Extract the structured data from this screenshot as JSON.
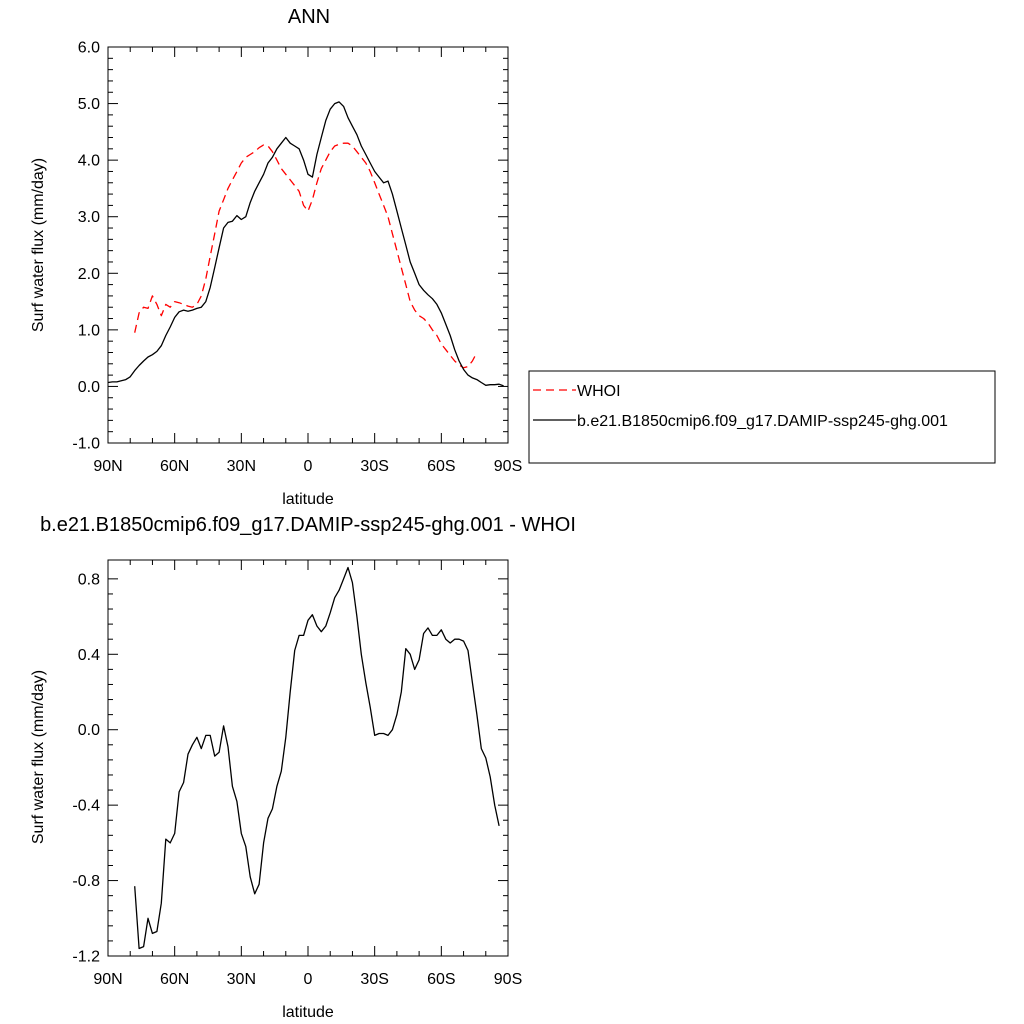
{
  "chart_data": [
    {
      "type": "line",
      "title": "ANN",
      "xlabel": "latitude",
      "ylabel": "Surf water flux (mm/day)",
      "xlim": [
        90,
        -90
      ],
      "ylim": [
        -1.0,
        6.0
      ],
      "x_ticks": [
        90,
        60,
        30,
        0,
        -30,
        -60,
        -90
      ],
      "x_tick_labels": [
        "90N",
        "60N",
        "30N",
        "0",
        "30S",
        "60S",
        "90S"
      ],
      "y_ticks": [
        -1.0,
        0.0,
        1.0,
        2.0,
        3.0,
        4.0,
        5.0,
        6.0
      ],
      "y_tick_labels": [
        "-1.0",
        "0.0",
        "1.0",
        "2.0",
        "3.0",
        "4.0",
        "5.0",
        "6.0"
      ],
      "grid": false,
      "legend": "outside-right",
      "series": [
        {
          "name": "WHOI",
          "color": "#ff0000",
          "dash": "dashed",
          "points": [
            [
              78,
              0.95
            ],
            [
              76,
              1.3
            ],
            [
              74,
              1.4
            ],
            [
              72,
              1.38
            ],
            [
              70,
              1.6
            ],
            [
              68,
              1.45
            ],
            [
              66,
              1.25
            ],
            [
              64,
              1.45
            ],
            [
              62,
              1.4
            ],
            [
              60,
              1.5
            ],
            [
              58,
              1.48
            ],
            [
              56,
              1.45
            ],
            [
              54,
              1.42
            ],
            [
              52,
              1.4
            ],
            [
              50,
              1.45
            ],
            [
              48,
              1.6
            ],
            [
              46,
              1.9
            ],
            [
              44,
              2.3
            ],
            [
              42,
              2.7
            ],
            [
              40,
              3.1
            ],
            [
              38,
              3.3
            ],
            [
              36,
              3.5
            ],
            [
              34,
              3.65
            ],
            [
              32,
              3.8
            ],
            [
              30,
              3.95
            ],
            [
              28,
              4.05
            ],
            [
              26,
              4.1
            ],
            [
              24,
              4.15
            ],
            [
              22,
              4.22
            ],
            [
              20,
              4.27
            ],
            [
              18,
              4.25
            ],
            [
              16,
              4.15
            ],
            [
              14,
              4.0
            ],
            [
              12,
              3.85
            ],
            [
              10,
              3.75
            ],
            [
              8,
              3.65
            ],
            [
              6,
              3.55
            ],
            [
              4,
              3.45
            ],
            [
              2,
              3.2
            ],
            [
              0,
              3.1
            ],
            [
              -2,
              3.3
            ],
            [
              -4,
              3.6
            ],
            [
              -6,
              3.85
            ],
            [
              -8,
              4.0
            ],
            [
              -10,
              4.15
            ],
            [
              -12,
              4.25
            ],
            [
              -14,
              4.28
            ],
            [
              -16,
              4.3
            ],
            [
              -18,
              4.3
            ],
            [
              -20,
              4.25
            ],
            [
              -22,
              4.15
            ],
            [
              -24,
              4.05
            ],
            [
              -26,
              3.95
            ],
            [
              -28,
              3.8
            ],
            [
              -30,
              3.6
            ],
            [
              -32,
              3.4
            ],
            [
              -34,
              3.2
            ],
            [
              -36,
              3.0
            ],
            [
              -38,
              2.7
            ],
            [
              -40,
              2.4
            ],
            [
              -42,
              2.1
            ],
            [
              -44,
              1.8
            ],
            [
              -46,
              1.5
            ],
            [
              -48,
              1.35
            ],
            [
              -50,
              1.25
            ],
            [
              -52,
              1.2
            ],
            [
              -54,
              1.12
            ],
            [
              -56,
              1.0
            ],
            [
              -58,
              0.9
            ],
            [
              -60,
              0.75
            ],
            [
              -62,
              0.65
            ],
            [
              -64,
              0.55
            ],
            [
              -66,
              0.45
            ],
            [
              -68,
              0.38
            ],
            [
              -70,
              0.33
            ],
            [
              -72,
              0.35
            ],
            [
              -74,
              0.45
            ],
            [
              -76,
              0.6
            ]
          ]
        },
        {
          "name": "b.e21.B1850cmip6.f09_g17.DAMIP-ssp245-ghg.001",
          "color": "#000000",
          "dash": "solid",
          "points": [
            [
              90,
              0.07
            ],
            [
              88,
              0.08
            ],
            [
              86,
              0.08
            ],
            [
              84,
              0.1
            ],
            [
              82,
              0.12
            ],
            [
              80,
              0.17
            ],
            [
              78,
              0.28
            ],
            [
              76,
              0.37
            ],
            [
              74,
              0.45
            ],
            [
              72,
              0.52
            ],
            [
              70,
              0.56
            ],
            [
              68,
              0.62
            ],
            [
              66,
              0.72
            ],
            [
              64,
              0.9
            ],
            [
              62,
              1.05
            ],
            [
              60,
              1.22
            ],
            [
              58,
              1.32
            ],
            [
              56,
              1.35
            ],
            [
              54,
              1.33
            ],
            [
              52,
              1.35
            ],
            [
              50,
              1.38
            ],
            [
              48,
              1.4
            ],
            [
              46,
              1.5
            ],
            [
              44,
              1.75
            ],
            [
              42,
              2.1
            ],
            [
              40,
              2.45
            ],
            [
              38,
              2.8
            ],
            [
              36,
              2.9
            ],
            [
              34,
              2.92
            ],
            [
              32,
              3.02
            ],
            [
              30,
              2.95
            ],
            [
              28,
              3.0
            ],
            [
              26,
              3.25
            ],
            [
              24,
              3.45
            ],
            [
              22,
              3.6
            ],
            [
              20,
              3.75
            ],
            [
              18,
              3.95
            ],
            [
              16,
              4.05
            ],
            [
              14,
              4.2
            ],
            [
              12,
              4.3
            ],
            [
              10,
              4.4
            ],
            [
              8,
              4.3
            ],
            [
              6,
              4.25
            ],
            [
              4,
              4.2
            ],
            [
              2,
              4.0
            ],
            [
              0,
              3.75
            ],
            [
              -2,
              3.7
            ],
            [
              -4,
              4.1
            ],
            [
              -6,
              4.4
            ],
            [
              -8,
              4.7
            ],
            [
              -10,
              4.9
            ],
            [
              -12,
              5.0
            ],
            [
              -14,
              5.03
            ],
            [
              -16,
              4.95
            ],
            [
              -18,
              4.75
            ],
            [
              -20,
              4.6
            ],
            [
              -22,
              4.45
            ],
            [
              -24,
              4.25
            ],
            [
              -26,
              4.1
            ],
            [
              -28,
              3.95
            ],
            [
              -30,
              3.8
            ],
            [
              -32,
              3.7
            ],
            [
              -34,
              3.6
            ],
            [
              -36,
              3.63
            ],
            [
              -38,
              3.4
            ],
            [
              -40,
              3.1
            ],
            [
              -42,
              2.8
            ],
            [
              -44,
              2.5
            ],
            [
              -46,
              2.2
            ],
            [
              -48,
              2.0
            ],
            [
              -50,
              1.8
            ],
            [
              -52,
              1.7
            ],
            [
              -54,
              1.62
            ],
            [
              -56,
              1.55
            ],
            [
              -58,
              1.45
            ],
            [
              -60,
              1.3
            ],
            [
              -62,
              1.1
            ],
            [
              -64,
              0.9
            ],
            [
              -66,
              0.65
            ],
            [
              -68,
              0.45
            ],
            [
              -70,
              0.3
            ],
            [
              -72,
              0.2
            ],
            [
              -74,
              0.15
            ],
            [
              -76,
              0.12
            ],
            [
              -78,
              0.07
            ],
            [
              -80,
              0.02
            ],
            [
              -82,
              0.03
            ],
            [
              -84,
              0.03
            ],
            [
              -86,
              0.04
            ],
            [
              -88,
              0.01
            ]
          ]
        }
      ]
    },
    {
      "type": "line",
      "title": "b.e21.B1850cmip6.f09_g17.DAMIP-ssp245-ghg.001 - WHOI",
      "xlabel": "latitude",
      "ylabel": "Surf water flux (mm/day)",
      "xlim": [
        90,
        -90
      ],
      "ylim": [
        -1.2,
        0.9
      ],
      "x_ticks": [
        90,
        60,
        30,
        0,
        -30,
        -60,
        -90
      ],
      "x_tick_labels": [
        "90N",
        "60N",
        "30N",
        "0",
        "30S",
        "60S",
        "90S"
      ],
      "y_ticks": [
        -1.2,
        -0.8,
        -0.4,
        0.0,
        0.4,
        0.8
      ],
      "y_tick_labels": [
        "-1.2",
        "-0.8",
        "-0.4",
        "0.0",
        "0.4",
        "0.8"
      ],
      "grid": false,
      "series": [
        {
          "color": "#000000",
          "dash": "solid",
          "points": [
            [
              78,
              -0.83
            ],
            [
              76,
              -1.16
            ],
            [
              74,
              -1.15
            ],
            [
              72,
              -1.0
            ],
            [
              70,
              -1.08
            ],
            [
              68,
              -1.07
            ],
            [
              66,
              -0.92
            ],
            [
              64,
              -0.58
            ],
            [
              62,
              -0.6
            ],
            [
              60,
              -0.55
            ],
            [
              58,
              -0.33
            ],
            [
              56,
              -0.28
            ],
            [
              54,
              -0.13
            ],
            [
              52,
              -0.08
            ],
            [
              50,
              -0.04
            ],
            [
              48,
              -0.1
            ],
            [
              46,
              -0.03
            ],
            [
              44,
              -0.03
            ],
            [
              42,
              -0.14
            ],
            [
              40,
              -0.12
            ],
            [
              38,
              0.02
            ],
            [
              36,
              -0.09
            ],
            [
              34,
              -0.3
            ],
            [
              32,
              -0.38
            ],
            [
              30,
              -0.55
            ],
            [
              28,
              -0.62
            ],
            [
              26,
              -0.78
            ],
            [
              24,
              -0.87
            ],
            [
              22,
              -0.82
            ],
            [
              20,
              -0.6
            ],
            [
              18,
              -0.47
            ],
            [
              16,
              -0.42
            ],
            [
              14,
              -0.3
            ],
            [
              12,
              -0.22
            ],
            [
              10,
              -0.04
            ],
            [
              8,
              0.2
            ],
            [
              6,
              0.42
            ],
            [
              4,
              0.5
            ],
            [
              2,
              0.5
            ],
            [
              0,
              0.58
            ],
            [
              -2,
              0.61
            ],
            [
              -4,
              0.55
            ],
            [
              -6,
              0.52
            ],
            [
              -8,
              0.55
            ],
            [
              -10,
              0.62
            ],
            [
              -12,
              0.7
            ],
            [
              -14,
              0.74
            ],
            [
              -16,
              0.8
            ],
            [
              -18,
              0.86
            ],
            [
              -20,
              0.78
            ],
            [
              -22,
              0.6
            ],
            [
              -24,
              0.4
            ],
            [
              -26,
              0.25
            ],
            [
              -28,
              0.12
            ],
            [
              -30,
              -0.03
            ],
            [
              -32,
              -0.02
            ],
            [
              -34,
              -0.02
            ],
            [
              -36,
              -0.03
            ],
            [
              -38,
              0.0
            ],
            [
              -40,
              0.08
            ],
            [
              -42,
              0.2
            ],
            [
              -44,
              0.43
            ],
            [
              -46,
              0.4
            ],
            [
              -48,
              0.32
            ],
            [
              -50,
              0.37
            ],
            [
              -52,
              0.51
            ],
            [
              -54,
              0.54
            ],
            [
              -56,
              0.5
            ],
            [
              -58,
              0.5
            ],
            [
              -60,
              0.53
            ],
            [
              -62,
              0.48
            ],
            [
              -64,
              0.46
            ],
            [
              -66,
              0.48
            ],
            [
              -68,
              0.48
            ],
            [
              -70,
              0.47
            ],
            [
              -72,
              0.42
            ],
            [
              -74,
              0.25
            ],
            [
              -76,
              0.08
            ],
            [
              -78,
              -0.1
            ],
            [
              -80,
              -0.15
            ],
            [
              -82,
              -0.25
            ],
            [
              -84,
              -0.4
            ],
            [
              -86,
              -0.51
            ]
          ]
        }
      ]
    }
  ]
}
